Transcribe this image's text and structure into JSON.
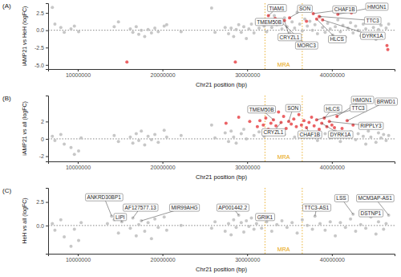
{
  "chart_data": [
    {
      "type": "scatter",
      "title": "(A)",
      "x_label": "Chr21 position (bp)",
      "y_label": "iAMP21 vs HeH (logFC)",
      "xlim": [
        6500000,
        47400000
      ],
      "ylim": [
        -5.6,
        3.9
      ],
      "xticks": [
        10000000,
        20000000,
        30000000,
        40000000
      ],
      "yticks": [
        {
          "value": -5,
          "label": "-5.0"
        },
        -2.5,
        {
          "value": 0,
          "label": "0.0"
        },
        2.5
      ],
      "reference_line": 0,
      "region": {
        "label": "MRA",
        "start": 32100000,
        "end": 36500000,
        "color": "#e69f00"
      },
      "series": [
        {
          "color": "#bdbdbd",
          "marker": "circle",
          "x": [
            7000000,
            7300000,
            8000000,
            8400000,
            9200000,
            9600000,
            10100000,
            14300000,
            14800000,
            16200000,
            16500000,
            16900000,
            17200000,
            17500000,
            17900000,
            18300000,
            18700000,
            19100000,
            19500000,
            20200000,
            20500000,
            22200000,
            25800000,
            26200000,
            27400000,
            27800000,
            28100000,
            28400000,
            28700000,
            29000000,
            29300000,
            29600000,
            29900000,
            30200000,
            30500000,
            30800000,
            31100000,
            31400000,
            31700000,
            32000000,
            32300000,
            32600000,
            32900000,
            33200000,
            33500000,
            33800000,
            34100000,
            34400000,
            34700000,
            35000000,
            35300000,
            35600000,
            35900000,
            36200000,
            36500000,
            36800000,
            37100000,
            37400000,
            37700000,
            38000000,
            38300000,
            38600000,
            38900000,
            39200000,
            39500000,
            39800000,
            40100000,
            40400000,
            40700000,
            41000000,
            41300000,
            41600000,
            41900000,
            42200000,
            42500000,
            42800000,
            43100000,
            43400000,
            43700000,
            44000000,
            44300000,
            44600000,
            44900000,
            45200000,
            45500000,
            45800000,
            46100000,
            46400000,
            46700000
          ],
          "values": [
            3.3,
            0.9,
            0.4,
            -0.3,
            0.2,
            0.6,
            -0.2,
            0.5,
            1.2,
            0.2,
            -0.3,
            0.5,
            -0.6,
            0.0,
            -0.9,
            0.1,
            -0.4,
            0.3,
            -0.2,
            0.6,
            0.8,
            -0.2,
            3.2,
            -0.3,
            0.4,
            -0.5,
            0.3,
            -0.9,
            0.1,
            0.8,
            -0.3,
            0.5,
            -1.2,
            0.2,
            0.9,
            -0.4,
            1.0,
            0.3,
            1.5,
            0.6,
            -0.2,
            1.1,
            0.4,
            2.1,
            0.8,
            1.4,
            0.2,
            1.8,
            0.5,
            -0.4,
            1.2,
            0.3,
            2.6,
            0.9,
            -0.1,
            1.6,
            0.6,
            1.3,
            0.0,
            0.8,
            -0.5,
            1.9,
            0.4,
            -0.3,
            1.0,
            0.2,
            -0.7,
            0.5,
            1.5,
            -0.2,
            0.7,
            -1.0,
            0.3,
            1.1,
            -0.4,
            0.6,
            0.0,
            -0.8,
            0.9,
            0.2,
            -0.5,
            1.3,
            0.4,
            -1.3,
            0.1,
            0.7,
            -0.6,
            0.3,
            0.9
          ]
        },
        {
          "color": "#e8474a",
          "marker": "circle",
          "x": [
            15800000,
            28600000,
            32500000,
            33300000,
            34000000,
            34400000,
            35000000,
            37000000,
            37800000,
            38200000,
            38500000,
            38900000,
            40700000,
            42300000,
            46500000,
            46600000
          ],
          "values": [
            -4.6,
            -4.6,
            2.1,
            1.7,
            1.2,
            1.4,
            1.8,
            1.3,
            2.4,
            1.6,
            2.0,
            1.5,
            2.3,
            2.5,
            -2.2,
            -2.8
          ]
        }
      ],
      "annotations": [
        {
          "text": "TIAM1",
          "x": 32500000,
          "y": 2.1,
          "text_x": 33500000,
          "text_y": 3.2
        },
        {
          "text": "SON",
          "x": 35000000,
          "y": 1.8,
          "text_x": 36800000,
          "text_y": 3.1
        },
        {
          "text": "TMEM50B",
          "x": 33300000,
          "y": 1.7,
          "text_x": 32600000,
          "text_y": 1.2
        },
        {
          "text": "CRYZL1",
          "x": 34400000,
          "y": 1.4,
          "text_x": 35000000,
          "text_y": -1.0
        },
        {
          "text": "MORC3",
          "x": 34000000,
          "y": 1.2,
          "text_x": 37000000,
          "text_y": -2.2
        },
        {
          "text": "CHAF1B",
          "x": 37800000,
          "y": 2.4,
          "text_x": 41500000,
          "text_y": 3.0
        },
        {
          "text": "HLCS",
          "x": 38200000,
          "y": 1.6,
          "text_x": 40600000,
          "text_y": -1.3
        },
        {
          "text": "TTC3",
          "x": 38500000,
          "y": 2.0,
          "text_x": 44800000,
          "text_y": 1.4
        },
        {
          "text": "HMGN1",
          "x": 40700000,
          "y": 2.3,
          "text_x": 45300000,
          "text_y": 3.4
        },
        {
          "text": "DYRK1A",
          "x": 38900000,
          "y": 1.5,
          "text_x": 44800000,
          "text_y": -0.8
        }
      ]
    },
    {
      "type": "scatter",
      "title": "(B)",
      "x_label": "Chr21 position (bp)",
      "y_label": "iAMP21 vs all (logFC)",
      "xlim": [
        6500000,
        47400000
      ],
      "ylim": [
        -2.6,
        5.0
      ],
      "xticks": [
        10000000,
        20000000,
        30000000,
        40000000
      ],
      "yticks": [
        -2,
        0,
        2
      ],
      "reference_line": 0,
      "region": {
        "label": "MRA",
        "start": 32100000,
        "end": 36500000,
        "color": "#e69f00"
      },
      "series": [
        {
          "color": "#bdbdbd",
          "marker": "circle",
          "x": [
            7000000,
            7300000,
            8000000,
            8400000,
            9200000,
            9600000,
            10100000,
            10400000,
            14300000,
            14800000,
            16200000,
            16500000,
            16900000,
            17200000,
            17500000,
            17900000,
            18300000,
            18700000,
            19100000,
            19500000,
            20200000,
            20500000,
            22200000,
            25800000,
            26200000,
            27400000,
            27800000,
            28100000,
            28400000,
            28700000,
            29300000,
            29600000,
            29900000,
            30800000,
            31400000,
            32000000,
            32900000,
            34400000,
            35600000,
            36500000,
            37700000,
            38300000,
            39200000,
            39800000,
            40400000,
            41000000,
            41600000,
            42200000,
            42800000,
            43100000,
            43700000,
            44000000,
            44300000,
            44600000,
            45200000,
            45500000,
            45800000,
            46100000,
            46400000,
            46700000
          ],
          "values": [
            0.3,
            -0.2,
            0.5,
            -0.6,
            -1.0,
            -1.8,
            -1.4,
            0.1,
            0.4,
            -0.3,
            0.2,
            -0.5,
            0.6,
            -0.2,
            0.9,
            -0.7,
            0.3,
            -0.1,
            0.5,
            -0.4,
            1.0,
            0.2,
            0.4,
            1.6,
            0.1,
            0.7,
            -0.3,
            0.9,
            0.2,
            -0.5,
            0.6,
            1.1,
            0.0,
            0.4,
            0.8,
            0.3,
            0.6,
            0.5,
            0.2,
            0.7,
            0.4,
            -0.2,
            0.6,
            0.1,
            0.9,
            -0.3,
            0.5,
            0.8,
            -0.1,
            0.6,
            0.3,
            -0.6,
            0.9,
            0.2,
            -0.4,
            0.7,
            0.1,
            0.5,
            -0.2,
            0.4
          ]
        },
        {
          "color": "#e8474a",
          "marker": "circle",
          "x": [
            27500000,
            29000000,
            30300000,
            31200000,
            31500000,
            31900000,
            32200000,
            32500000,
            32800000,
            33100000,
            33400000,
            33700000,
            34000000,
            34300000,
            34600000,
            34900000,
            35200000,
            35500000,
            35800000,
            36100000,
            36400000,
            36700000,
            37000000,
            37300000,
            37600000,
            37900000,
            38200000,
            38500000,
            38800000,
            39100000,
            39400000,
            39700000,
            40000000,
            40300000,
            40600000,
            41200000,
            41800000,
            42500000,
            43400000
          ],
          "values": [
            1.8,
            2.5,
            2.0,
            1.4,
            2.1,
            1.6,
            2.4,
            1.1,
            1.8,
            2.2,
            1.5,
            3.1,
            1.9,
            2.6,
            1.2,
            2.0,
            1.7,
            2.3,
            1.4,
            2.8,
            1.6,
            2.1,
            1.3,
            1.9,
            2.5,
            1.5,
            2.2,
            1.1,
            1.8,
            2.4,
            1.4,
            2.0,
            1.6,
            1.3,
            2.6,
            1.2,
            2.1,
            1.6,
            1.3
          ]
        }
      ],
      "annotations": [
        {
          "text": "TMEM50B",
          "x": 33100000,
          "y": 2.2,
          "text_x": 31700000,
          "text_y": 3.4
        },
        {
          "text": "SON",
          "x": 34900000,
          "y": 2.0,
          "text_x": 35400000,
          "text_y": 3.55
        },
        {
          "text": "HLCS",
          "x": 39100000,
          "y": 2.4,
          "text_x": 40100000,
          "text_y": 3.5
        },
        {
          "text": "TTC3",
          "x": 38200000,
          "y": 2.2,
          "text_x": 43100000,
          "text_y": 3.55
        },
        {
          "text": "HMGN1",
          "x": 40600000,
          "y": 2.6,
          "text_x": 43600000,
          "text_y": 4.5
        },
        {
          "text": "BRWD1",
          "x": 41800000,
          "y": 2.1,
          "text_x": 46400000,
          "text_y": 4.3
        },
        {
          "text": "CHAF1B",
          "x": 37000000,
          "y": 1.3,
          "text_x": 37400000,
          "text_y": 0.5
        },
        {
          "text": "CRYZL1",
          "x": 34000000,
          "y": 1.9,
          "text_x": 33100000,
          "text_y": 0.75
        },
        {
          "text": "DYRK1A",
          "x": 38800000,
          "y": 1.8,
          "text_x": 41000000,
          "text_y": 0.5
        },
        {
          "text": "RIPPLY3",
          "x": 39700000,
          "y": 2.0,
          "text_x": 44600000,
          "text_y": 1.5
        }
      ]
    },
    {
      "type": "scatter",
      "title": "(C)",
      "x_label": "Chr21 position (bp)",
      "y_label": "HeH vs all (logFC)",
      "xlim": [
        6500000,
        47400000
      ],
      "ylim": [
        -3,
        4
      ],
      "xticks": [
        10000000,
        20000000,
        30000000,
        40000000
      ],
      "yticks": [
        {
          "value": 0,
          "label": "0.0"
        },
        2.5
      ],
      "reference_line": 0,
      "region": {
        "label": "MRA",
        "start": 32100000,
        "end": 36500000,
        "color": "#e69f00"
      },
      "series": [
        {
          "color": "#bdbdbd",
          "marker": "circle",
          "x": [
            7000000,
            7300000,
            8000000,
            8400000,
            9200000,
            9600000,
            10100000,
            10400000,
            13500000,
            14000000,
            14300000,
            14800000,
            15200000,
            16200000,
            16500000,
            16900000,
            17200000,
            17500000,
            17900000,
            18300000,
            18700000,
            19100000,
            19500000,
            20200000,
            20500000,
            22200000,
            25800000,
            26200000,
            27400000,
            27800000,
            28100000,
            28400000,
            28700000,
            29000000,
            29300000,
            29600000,
            29900000,
            30200000,
            30500000,
            30800000,
            31100000,
            31400000,
            31700000,
            32300000,
            32900000,
            33500000,
            34100000,
            34700000,
            35300000,
            35900000,
            36500000,
            37100000,
            37700000,
            38000000,
            38600000,
            39200000,
            39800000,
            40400000,
            41000000,
            41600000,
            42200000,
            42500000,
            42800000,
            43400000,
            44000000,
            44600000,
            44900000,
            45200000,
            45500000,
            46100000,
            46400000,
            46700000
          ],
          "values": [
            0.2,
            -0.5,
            0.6,
            -1.2,
            -2.2,
            -0.4,
            -1.6,
            0.3,
            0.2,
            1.0,
            0.6,
            -0.8,
            0.4,
            -0.3,
            0.8,
            -1.1,
            0.1,
            0.5,
            -0.6,
            0.3,
            -1.4,
            0.7,
            -0.2,
            0.9,
            -0.5,
            0.0,
            -0.3,
            0.4,
            -0.6,
            0.2,
            -1.0,
            0.6,
            -0.2,
            1.1,
            0.3,
            -0.7,
            0.5,
            -0.1,
            0.8,
            -0.4,
            0.2,
            1.0,
            -0.3,
            0.4,
            -0.6,
            0.1,
            0.5,
            -0.2,
            0.3,
            -0.8,
            0.6,
            0.0,
            -0.4,
            1.0,
            0.2,
            -0.5,
            0.4,
            -1.1,
            0.3,
            -0.2,
            0.7,
            1.2,
            -0.6,
            0.1,
            -0.3,
            0.9,
            1.3,
            -0.9,
            0.4,
            -0.4,
            0.2,
            1.1
          ]
        }
      ],
      "annotations": [
        {
          "text": "ANKRD30BP1",
          "x": 14000000,
          "y": 1.0,
          "text_x": 13100000,
          "text_y": 3.0
        },
        {
          "text": "LIPI",
          "x": 15200000,
          "y": 0.4,
          "text_x": 15000000,
          "text_y": 0.9
        },
        {
          "text": "AF127577.13",
          "x": 16500000,
          "y": 0.8,
          "text_x": 17400000,
          "text_y": 1.9
        },
        {
          "text": "MIR99AHG",
          "x": 17500000,
          "y": 0.5,
          "text_x": 22600000,
          "text_y": 1.9
        },
        {
          "text": "AP001442.2",
          "x": 29000000,
          "y": 1.1,
          "text_x": 28300000,
          "text_y": 1.9
        },
        {
          "text": "GRIK1",
          "x": 31400000,
          "y": 1.0,
          "text_x": 32100000,
          "text_y": 0.9
        },
        {
          "text": "TTC3-AS1",
          "x": 38000000,
          "y": 1.0,
          "text_x": 38200000,
          "text_y": 1.9
        },
        {
          "text": "LSS",
          "x": 42500000,
          "y": 1.2,
          "text_x": 41100000,
          "text_y": 2.9
        },
        {
          "text": "MCM3AP-AS1",
          "x": 46700000,
          "y": 1.1,
          "text_x": 45100000,
          "text_y": 2.9
        },
        {
          "text": "DSTNP1",
          "x": 44900000,
          "y": 1.3,
          "text_x": 44600000,
          "text_y": 1.3
        }
      ]
    }
  ]
}
